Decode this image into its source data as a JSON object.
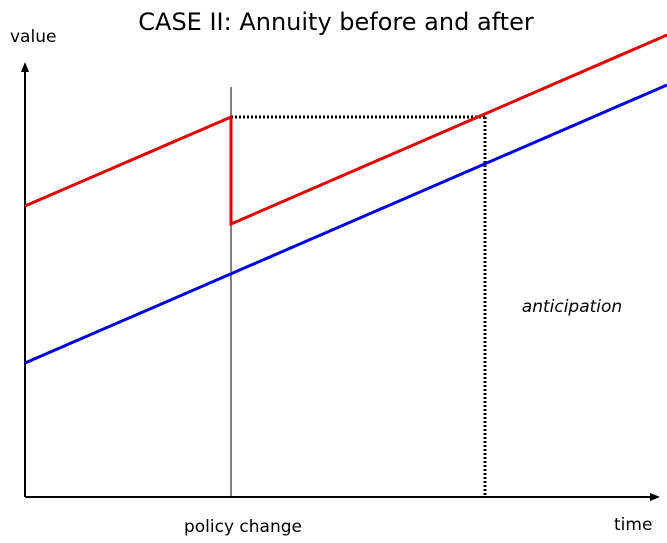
{
  "title": "CASE II: Annuity before and after",
  "axes": {
    "y_label": "value",
    "x_label": "time"
  },
  "annotations": {
    "event": "policy change",
    "region": "anticipation"
  }
}
